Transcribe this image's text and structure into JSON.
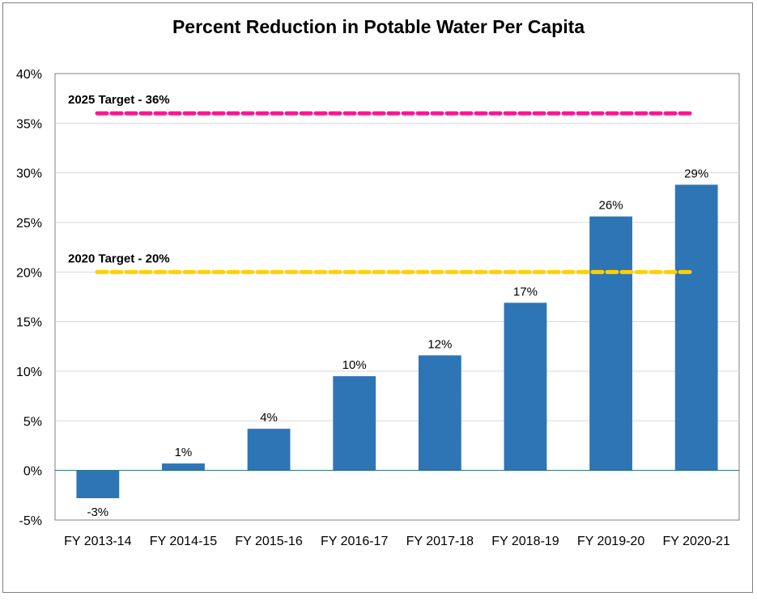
{
  "chart_data": {
    "type": "bar",
    "title": "Percent Reduction in Potable Water Per Capita",
    "categories": [
      "FY 2013-14",
      "FY 2014-15",
      "FY 2015-16",
      "FY 2016-17",
      "FY 2017-18",
      "FY 2018-19",
      "FY 2019-20",
      "FY 2020-21"
    ],
    "values": [
      -2.8,
      0.7,
      4.2,
      9.5,
      11.6,
      16.9,
      25.6,
      28.8
    ],
    "data_labels": [
      "-3%",
      "1%",
      "4%",
      "10%",
      "12%",
      "17%",
      "26%",
      "29%"
    ],
    "ylim": [
      -5,
      40
    ],
    "yticks": [
      -5,
      0,
      5,
      10,
      15,
      20,
      25,
      30,
      35,
      40
    ],
    "ytick_labels": [
      "-5%",
      "0%",
      "5%",
      "10%",
      "15%",
      "20%",
      "25%",
      "30%",
      "35%",
      "40%"
    ],
    "grid": true,
    "bar_color": "#2e75b6",
    "targets": [
      {
        "label": "2025 Target - 36%",
        "value": 36,
        "color": "#ff1493"
      },
      {
        "label": "2020 Target - 20%",
        "value": 20,
        "color": "#ffd000"
      }
    ]
  }
}
